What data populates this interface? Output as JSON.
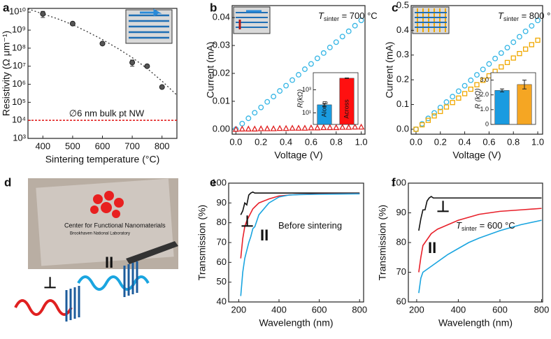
{
  "chart_data": [
    {
      "type": "scatter",
      "panel": "a",
      "xlabel": "Sintering temperature (°C)",
      "ylabel": "Resistivity (Ω μm⁻¹)",
      "x": [
        400,
        500,
        600,
        700,
        750,
        800
      ],
      "values": [
        8000000000,
        2300000000,
        180000000,
        16000000,
        10000000,
        700000
      ],
      "errors": [
        3000000000,
        300000000,
        30000000,
        6000000,
        1500000,
        100000
      ],
      "color": "#555555",
      "ylog": true,
      "xlim": [
        350,
        850
      ],
      "ylim": [
        1000,
        16000000000
      ],
      "xticks": [
        400,
        500,
        600,
        700,
        800
      ],
      "yticks": [
        {
          "value": 1000,
          "label": "10³"
        },
        {
          "value": 10000,
          "label": "10⁴"
        },
        {
          "value": 100000,
          "label": "10⁵"
        },
        {
          "value": 1000000,
          "label": "10⁶"
        },
        {
          "value": 10000000,
          "label": "10⁷"
        },
        {
          "value": 100000000,
          "label": "10⁸"
        },
        {
          "value": 1000000000,
          "label": "10⁹"
        },
        {
          "value": 10000000000,
          "label": "10¹⁰"
        }
      ],
      "fit": {
        "x": [
          350,
          400,
          450,
          500,
          550,
          600,
          650,
          700,
          750,
          800,
          850
        ],
        "values": [
          15000000000,
          8000000000,
          4200000000,
          2000000000,
          800000000,
          300000000,
          100000000,
          30000000,
          7500000,
          1500000,
          250000
        ]
      },
      "reference": {
        "value": 10000,
        "label": "∅6 nm bulk pt NW",
        "color": "#e01010"
      }
    },
    {
      "type": "line-scatter",
      "panel": "b",
      "xlabel": "Voltage (V)",
      "ylabel": "Current (mA)",
      "annotation": [
        "T",
        "sinter",
        " = 700 °C"
      ],
      "x": [
        0,
        0.05,
        0.1,
        0.15,
        0.2,
        0.25,
        0.3,
        0.35,
        0.4,
        0.45,
        0.5,
        0.55,
        0.6,
        0.65,
        0.7,
        0.75,
        0.8,
        0.85,
        0.9,
        0.95,
        1
      ],
      "series": [
        {
          "color": "#33b5e5",
          "marker": "circle",
          "values": [
            0,
            0.002,
            0.0039,
            0.0059,
            0.0078,
            0.0098,
            0.0117,
            0.0137,
            0.0156,
            0.0176,
            0.0195,
            0.0215,
            0.0234,
            0.0254,
            0.0273,
            0.0293,
            0.0312,
            0.0332,
            0.0351,
            0.0371,
            0.039
          ]
        },
        {
          "color": "#e02020",
          "marker": "triangle",
          "values": [
            0,
            0.0001,
            0.0001,
            0.0001,
            0.0002,
            0.0002,
            0.0002,
            0.0003,
            0.0003,
            0.0004,
            0.0004,
            0.0004,
            0.0005,
            0.0005,
            0.0006,
            0.0006,
            0.0006,
            0.0007,
            0.0007,
            0.0008,
            0.0008
          ]
        }
      ],
      "xlim": [
        -0.03,
        1.03
      ],
      "ylim": [
        -0.0018,
        0.0443
      ],
      "xticks": [
        {
          "value": 0,
          "label": "0.0"
        },
        0.2,
        0.4,
        0.6,
        0.8,
        {
          "value": 1,
          "label": "1.0"
        }
      ],
      "yticks": [
        {
          "value": 0,
          "label": "0.00"
        },
        0.01,
        0.02,
        0.03,
        0.04
      ],
      "inset": {
        "type": "bar",
        "ylabel": "R(kΩ)",
        "ylog": true,
        "categories": [
          "Along",
          "Across"
        ],
        "values": [
          50,
          10000
        ],
        "errors": [
          15,
          500
        ],
        "colors": [
          "#1a9be0",
          "#ff1010"
        ],
        "ylim": [
          1,
          30000
        ],
        "yticks": [
          {
            "value": 10,
            "label": "10¹"
          },
          {
            "value": 1000,
            "label": "10³"
          }
        ]
      }
    },
    {
      "type": "line-scatter",
      "panel": "c",
      "xlabel": "Voltage (V)",
      "ylabel": "Current (mA)",
      "annotation": [
        "T",
        "sinter",
        " = 800 °C"
      ],
      "x": [
        0,
        0.05,
        0.1,
        0.15,
        0.2,
        0.25,
        0.3,
        0.35,
        0.4,
        0.45,
        0.5,
        0.55,
        0.6,
        0.65,
        0.7,
        0.75,
        0.8,
        0.85,
        0.9,
        0.95,
        1
      ],
      "series": [
        {
          "color": "#33b5e5",
          "marker": "circle",
          "values": [
            0,
            0.022,
            0.044,
            0.066,
            0.088,
            0.11,
            0.132,
            0.154,
            0.176,
            0.198,
            0.22,
            0.242,
            0.264,
            0.286,
            0.308,
            0.33,
            0.352,
            0.374,
            0.396,
            0.418,
            0.44
          ]
        },
        {
          "color": "#f0a800",
          "marker": "square",
          "values": [
            0,
            0.018,
            0.036,
            0.054,
            0.072,
            0.09,
            0.108,
            0.126,
            0.144,
            0.162,
            0.18,
            0.198,
            0.216,
            0.234,
            0.252,
            0.27,
            0.288,
            0.306,
            0.324,
            0.342,
            0.36
          ]
        }
      ],
      "xlim": [
        -0.04,
        1.04
      ],
      "ylim": [
        -0.02,
        0.5
      ],
      "xticks": [
        {
          "value": 0,
          "label": "0.0"
        },
        0.2,
        0.4,
        0.6,
        0.8,
        {
          "value": 1,
          "label": "1.0"
        }
      ],
      "yticks": [
        {
          "value": 0,
          "label": "0.0"
        },
        0.1,
        0.2,
        0.3,
        0.4,
        0.5
      ],
      "inset": {
        "type": "bar",
        "ylabel": "R (kΩ)",
        "ylog": false,
        "values": [
          2.3,
          2.7
        ],
        "errors": [
          0.1,
          0.3
        ],
        "colors": [
          "#1a9be0",
          "#f5a623"
        ],
        "ylim": [
          0,
          3.5
        ],
        "yticks": [
          0,
          {
            "value": 1,
            "label": "1.0"
          },
          {
            "value": 2,
            "label": "2.0"
          },
          {
            "value": 3,
            "label": "3.0"
          }
        ]
      }
    },
    {
      "type": "line",
      "panel": "e",
      "xlabel": "Wavelength (nm)",
      "ylabel": "Transmission (%)",
      "annotation": [
        "Before sintering"
      ],
      "x": [
        210,
        220,
        230,
        240,
        250,
        260,
        270,
        280,
        300,
        350,
        400,
        450,
        500,
        600,
        700,
        800
      ],
      "series": [
        {
          "color": "#111111",
          "values": [
            84,
            86,
            90,
            89,
            94,
            95,
            95.5,
            95,
            95,
            95,
            95,
            95,
            95,
            95,
            95,
            95
          ]
        },
        {
          "name": "⊥",
          "color": "#e8202a",
          "values": [
            62,
            72,
            78,
            81,
            83,
            85,
            87,
            88,
            90,
            92,
            93.5,
            94,
            94.3,
            94.5,
            94.6,
            94.7
          ]
        },
        {
          "name": "II",
          "color": "#1aa5e0",
          "values": [
            43,
            55,
            62,
            66,
            70,
            73,
            77,
            78,
            84,
            90,
            93,
            94,
            94.2,
            94.4,
            94.5,
            94.6
          ]
        }
      ],
      "xlim": [
        150,
        820
      ],
      "ylim": [
        40,
        100
      ],
      "xticks": [
        200,
        400,
        600,
        800
      ],
      "yticks": [
        40,
        50,
        60,
        70,
        80,
        90,
        100
      ]
    },
    {
      "type": "line",
      "panel": "f",
      "xlabel": "Wavelength (nm)",
      "ylabel": "Transmission (%)",
      "annotation": [
        "T",
        "sinter",
        " = 600 °C"
      ],
      "x": [
        210,
        220,
        230,
        240,
        250,
        260,
        270,
        280,
        300,
        350,
        400,
        450,
        500,
        600,
        700,
        800
      ],
      "series": [
        {
          "color": "#111111",
          "values": [
            84,
            88,
            91,
            91,
            94,
            95,
            95.5,
            95,
            95,
            95,
            95,
            95,
            95,
            95,
            95,
            95
          ]
        },
        {
          "name": "⊥",
          "color": "#e8202a",
          "values": [
            70,
            75,
            79,
            80,
            81,
            82,
            83,
            83.5,
            84.5,
            86,
            87.5,
            88.5,
            89.5,
            90.5,
            91,
            91.5
          ]
        },
        {
          "name": "II",
          "color": "#1aa5e0",
          "values": [
            63,
            68,
            70,
            70.5,
            71,
            71.5,
            72,
            72.5,
            73.5,
            76,
            78,
            80,
            81.5,
            84,
            86,
            87.5
          ]
        }
      ],
      "xlim": [
        160,
        805
      ],
      "ylim": [
        60,
        100
      ],
      "xticks": [
        200,
        400,
        600,
        800
      ],
      "yticks": [
        60,
        70,
        80,
        90,
        100
      ]
    }
  ],
  "photo": {
    "panel": "d",
    "texts": [
      "Center for Functional Nanomaterials",
      "Brookhaven National Laboratory"
    ],
    "perpendicular": "⊥",
    "parallel": "II"
  }
}
